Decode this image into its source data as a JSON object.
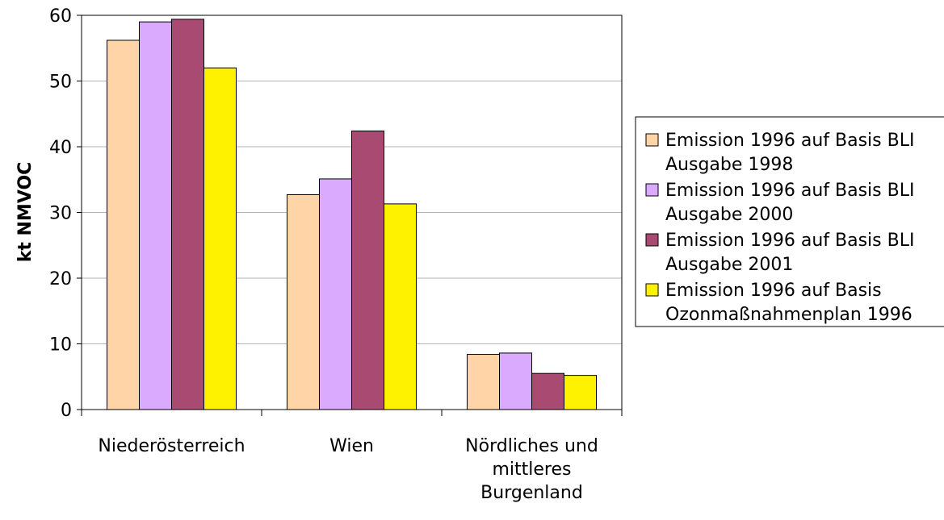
{
  "chart_data": {
    "type": "bar",
    "title": "",
    "xlabel": "",
    "ylabel": "kt NMVOC",
    "ylim": [
      0,
      60
    ],
    "yticks": [
      "0",
      "10",
      "20",
      "30",
      "40",
      "50",
      "60"
    ],
    "grid": true,
    "legend_position": "right",
    "categories": [
      [
        "Niederösterreich"
      ],
      [
        "Wien"
      ],
      [
        "Nördliches und",
        "mittleres",
        "Burgenland"
      ]
    ],
    "series": [
      {
        "name": [
          "Emission 1996 auf Basis BLI",
          "Ausgabe 1998"
        ],
        "color": "#FFD4A6",
        "values": [
          56.2,
          32.7,
          8.4
        ]
      },
      {
        "name": [
          "Emission 1996 auf Basis BLI",
          "Ausgabe 2000"
        ],
        "color": "#D9AAFF",
        "values": [
          59.0,
          35.1,
          8.6
        ]
      },
      {
        "name": [
          "Emission 1996 auf Basis BLI",
          "Ausgabe 2001"
        ],
        "color": "#A84A72",
        "values": [
          59.4,
          42.4,
          5.5
        ]
      },
      {
        "name": [
          "Emission 1996 auf Basis",
          "Ozonmaßnahmenplan 1996"
        ],
        "color": "#FFF200",
        "values": [
          52.0,
          31.3,
          5.2
        ]
      }
    ]
  }
}
